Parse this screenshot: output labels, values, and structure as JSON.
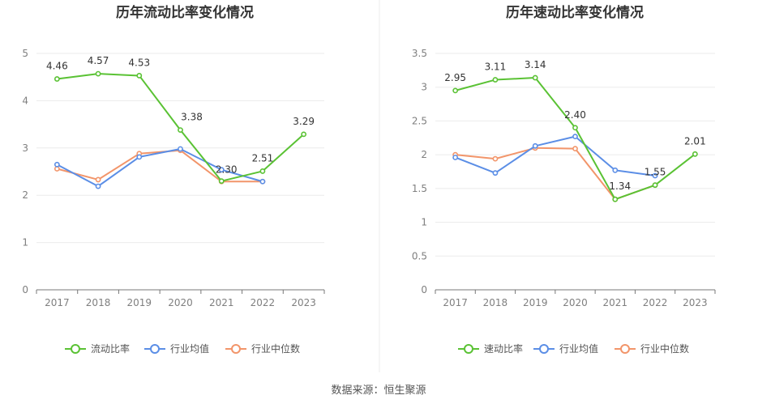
{
  "footer": "数据来源：恒生聚源",
  "chart_data": [
    {
      "type": "line",
      "title": "历年流动比率变化情况",
      "categories": [
        "2017",
        "2018",
        "2019",
        "2020",
        "2021",
        "2022",
        "2023"
      ],
      "ylim": [
        0,
        5
      ],
      "yticks": [
        "0",
        "1",
        "2",
        "3",
        "4",
        "5"
      ],
      "grid": true,
      "legend_position": "bottom",
      "series": [
        {
          "name": "流动比率",
          "color": "#5ac234",
          "values": [
            4.46,
            4.57,
            4.53,
            3.38,
            2.3,
            2.51,
            3.29
          ],
          "labels": [
            "4.46",
            "4.57",
            "4.53",
            "3.38",
            "2.30",
            "2.51",
            "3.29"
          ]
        },
        {
          "name": "行业均值",
          "color": "#5b8ee6",
          "values": [
            2.65,
            2.19,
            2.81,
            2.98,
            2.54,
            2.29,
            null
          ]
        },
        {
          "name": "行业中位数",
          "color": "#f2956a",
          "values": [
            2.56,
            2.33,
            2.88,
            2.95,
            2.29,
            2.29,
            null
          ]
        }
      ]
    },
    {
      "type": "line",
      "title": "历年速动比率变化情况",
      "categories": [
        "2017",
        "2018",
        "2019",
        "2020",
        "2021",
        "2022",
        "2023"
      ],
      "ylim": [
        0,
        3.5
      ],
      "yticks": [
        "0",
        "0.5",
        "1",
        "1.5",
        "2",
        "2.5",
        "3",
        "3.5"
      ],
      "grid": true,
      "legend_position": "bottom",
      "series": [
        {
          "name": "速动比率",
          "color": "#5ac234",
          "values": [
            2.95,
            3.11,
            3.14,
            2.4,
            1.34,
            1.55,
            2.01
          ],
          "labels": [
            "2.95",
            "3.11",
            "3.14",
            "2.40",
            "1.34",
            "1.55",
            "2.01"
          ]
        },
        {
          "name": "行业均值",
          "color": "#5b8ee6",
          "values": [
            1.96,
            1.73,
            2.13,
            2.27,
            1.77,
            1.69,
            null
          ]
        },
        {
          "name": "行业中位数",
          "color": "#f2956a",
          "values": [
            2.0,
            1.94,
            2.1,
            2.09,
            1.34,
            1.55,
            null
          ]
        }
      ]
    }
  ]
}
